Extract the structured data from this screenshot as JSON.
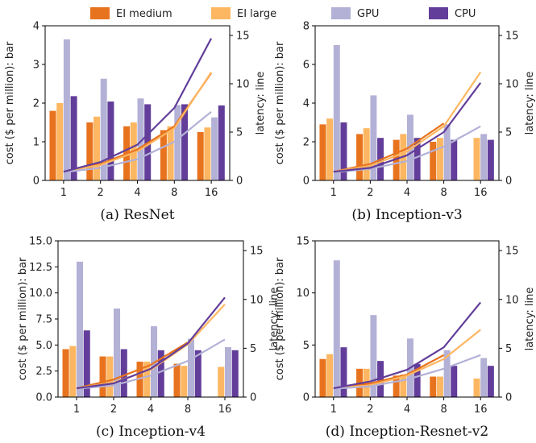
{
  "legend": {
    "series": [
      {
        "name": "EI medium",
        "color": "#e8731e"
      },
      {
        "name": "EI large",
        "color": "#fdb762"
      },
      {
        "name": "GPU",
        "color": "#b3b1d6"
      },
      {
        "name": "CPU",
        "color": "#623e9a"
      }
    ]
  },
  "chart_data": [
    {
      "type": "bar",
      "caption": "(a) ResNet",
      "categories": [
        "1",
        "2",
        "4",
        "8",
        "16"
      ],
      "ylabel": "cost ($ per million): bar",
      "y2label": "latency: line",
      "ylim": [
        0,
        4
      ],
      "yticks": [
        "0",
        "1",
        "2",
        "3",
        "4"
      ],
      "y2lim": [
        0,
        16
      ],
      "y2ticks": [
        "0",
        "5",
        "10",
        "15"
      ],
      "series": [
        {
          "name": "EI medium",
          "bar_values": [
            1.8,
            1.5,
            1.4,
            1.3,
            1.25
          ],
          "line_values": [
            0.9,
            1.7,
            3.2,
            5.6,
            11.1
          ]
        },
        {
          "name": "EI large",
          "bar_values": [
            2.0,
            1.65,
            1.5,
            1.4,
            1.37
          ],
          "line_values": [
            0.9,
            1.6,
            3.0,
            5.4,
            11.2
          ]
        },
        {
          "name": "GPU",
          "bar_values": [
            3.65,
            2.63,
            2.12,
            1.95,
            1.63
          ],
          "line_values": [
            0.85,
            1.3,
            2.2,
            4.0,
            7.1
          ]
        },
        {
          "name": "CPU",
          "bar_values": [
            2.18,
            2.04,
            1.97,
            1.97,
            1.94
          ],
          "line_values": [
            0.9,
            1.9,
            3.7,
            7.5,
            14.7
          ]
        }
      ]
    },
    {
      "type": "bar",
      "caption": "(b) Inception-v3",
      "categories": [
        "1",
        "2",
        "4",
        "8",
        "16"
      ],
      "ylabel": "cost ($ per million): bar",
      "y2label": "latency: line",
      "ylim": [
        0,
        8
      ],
      "yticks": [
        "0",
        "2",
        "4",
        "6",
        "8"
      ],
      "y2lim": [
        0,
        16
      ],
      "y2ticks": [
        "0",
        "5",
        "10",
        "15"
      ],
      "series": [
        {
          "name": "EI medium",
          "bar_values": [
            2.9,
            2.4,
            2.1,
            2.0,
            null
          ],
          "line_values": [
            0.9,
            1.7,
            3.3,
            5.9,
            null
          ]
        },
        {
          "name": "EI large",
          "bar_values": [
            3.2,
            2.7,
            2.4,
            2.2,
            2.2
          ],
          "line_values": [
            0.9,
            1.5,
            3.0,
            5.6,
            11.2
          ]
        },
        {
          "name": "GPU",
          "bar_values": [
            7.0,
            4.4,
            3.4,
            2.9,
            2.4
          ],
          "line_values": [
            0.85,
            1.2,
            2.0,
            3.5,
            5.6
          ]
        },
        {
          "name": "CPU",
          "bar_values": [
            3.0,
            2.2,
            2.2,
            2.1,
            2.1
          ],
          "line_values": [
            0.9,
            1.3,
            2.6,
            5.0,
            10.1
          ]
        }
      ]
    },
    {
      "type": "bar",
      "caption": "(c) Inception-v4",
      "categories": [
        "1",
        "2",
        "4",
        "8",
        "16"
      ],
      "ylabel": "cost ($ per million): bar",
      "y2label": "latency: line",
      "ylim": [
        0,
        15
      ],
      "yticks": [
        "0.0",
        "2.5",
        "5.0",
        "7.5",
        "10.0",
        "12.5",
        "15.0"
      ],
      "y2lim": [
        0,
        16
      ],
      "y2ticks": [
        "0",
        "5",
        "10",
        "15"
      ],
      "series": [
        {
          "name": "EI medium",
          "bar_values": [
            4.6,
            3.9,
            3.4,
            3.2,
            null
          ],
          "line_values": [
            0.9,
            1.8,
            3.3,
            5.6,
            null
          ]
        },
        {
          "name": "EI large",
          "bar_values": [
            4.9,
            3.9,
            3.4,
            3.0,
            2.9
          ],
          "line_values": [
            0.9,
            1.5,
            2.8,
            5.4,
            9.5
          ]
        },
        {
          "name": "GPU",
          "bar_values": [
            13.0,
            8.5,
            6.8,
            5.6,
            4.8
          ],
          "line_values": [
            0.85,
            1.2,
            2.2,
            3.7,
            5.9
          ]
        },
        {
          "name": "CPU",
          "bar_values": [
            6.4,
            4.6,
            4.5,
            4.5,
            4.5
          ],
          "line_values": [
            0.9,
            1.4,
            2.9,
            5.5,
            10.2
          ]
        }
      ]
    },
    {
      "type": "bar",
      "caption": "(d) Inception-Resnet-v2",
      "categories": [
        "1",
        "2",
        "4",
        "8",
        "16"
      ],
      "ylabel": "cost ($ per million): bar",
      "y2label": "latency: line",
      "ylim": [
        0,
        16
      ],
      "yticks": [
        "0",
        "5",
        "10",
        "15"
      ],
      "y2lim": [
        0,
        16
      ],
      "y2ticks": [
        "0",
        "5",
        "10",
        "15"
      ],
      "series": [
        {
          "name": "EI medium",
          "bar_values": [
            3.9,
            2.9,
            2.2,
            2.1,
            null
          ],
          "line_values": [
            0.9,
            1.4,
            2.3,
            4.3,
            null
          ]
        },
        {
          "name": "EI large",
          "bar_values": [
            4.4,
            2.9,
            2.3,
            2.1,
            1.9
          ],
          "line_values": [
            0.9,
            1.2,
            2.2,
            3.9,
            6.9
          ]
        },
        {
          "name": "GPU",
          "bar_values": [
            14.0,
            8.4,
            6.0,
            4.8,
            4.0
          ],
          "line_values": [
            0.85,
            1.1,
            1.8,
            2.9,
            4.3
          ]
        },
        {
          "name": "CPU",
          "bar_values": [
            5.1,
            3.7,
            3.4,
            3.2,
            3.2
          ],
          "line_values": [
            0.9,
            1.6,
            2.8,
            5.1,
            9.7
          ]
        }
      ]
    }
  ]
}
